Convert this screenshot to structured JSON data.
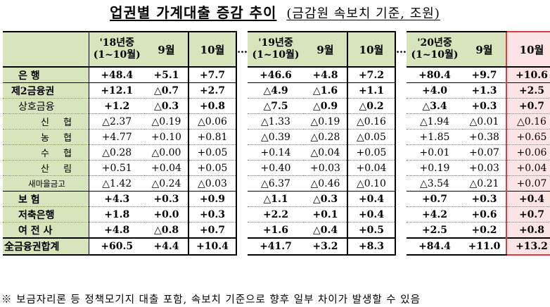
{
  "title": {
    "main": "업권별 가계대출 증감 추이",
    "sub": "(금감원 속보치 기준, 조원)"
  },
  "columns": {
    "y18_main_line1": "'18년중",
    "y18_main_line2": "(1~10월)",
    "y18_sep": "9월",
    "y18_oct": "10월",
    "dots": "…",
    "y19_main_line1": "'19년중",
    "y19_main_line2": "(1~10월)",
    "y19_sep": "9월",
    "y19_oct": "10월",
    "y20_main_line1": "'20년중",
    "y20_main_line2": "(1~10월)",
    "y20_sep": "9월",
    "y20_oct": "10월"
  },
  "rows": [
    {
      "label": "은      행",
      "values": [
        "+48.4",
        "+5.1",
        "+7.7",
        "+46.6",
        "+4.8",
        "+7.2",
        "+80.4",
        "+9.7",
        "+10.6"
      ]
    },
    {
      "label": "제2금융권",
      "values": [
        "+12.1",
        "△0.7",
        "+2.7",
        "△4.9",
        "△1.6",
        "+1.1",
        "+4.0",
        "+1.3",
        "+2.5"
      ]
    },
    {
      "label": "상호금융",
      "values": [
        "+1.2",
        "△0.3",
        "+0.8",
        "△7.5",
        "△0.9",
        "△0.2",
        "△3.4",
        "+0.3",
        "+0.7"
      ]
    },
    {
      "label": "신 협",
      "values": [
        "△2.37",
        "△0.19",
        "△0.06",
        "△1.33",
        "△0.19",
        "△0.16",
        "△1.94",
        "△0.01",
        "△0.16"
      ]
    },
    {
      "label": "농 협",
      "values": [
        "+4.77",
        "+0.10",
        "+0.81",
        "△0.39",
        "△0.28",
        "△0.05",
        "+1.85",
        "+0.38",
        "+0.65"
      ]
    },
    {
      "label": "수 협",
      "values": [
        "△0.28",
        "△0.00",
        "+0.05",
        "+0.14",
        "△0.04",
        "+0.05",
        "+0.01",
        "+0.07",
        "+0.06"
      ]
    },
    {
      "label": "산 림",
      "values": [
        "+0.51",
        "+0.04",
        "+0.05",
        "+0.40",
        "+0.03",
        "+0.04",
        "+0.19",
        "+0.03",
        "+0.04"
      ]
    },
    {
      "label": "새마을금고",
      "values": [
        "△1.42",
        "△0.24",
        "△0.03",
        "△6.37",
        "△0.46",
        "△0.10",
        "△3.54",
        "△0.21",
        "+0.07"
      ]
    },
    {
      "label": "보      험",
      "values": [
        "+4.3",
        "+0.3",
        "+0.9",
        "△1.1",
        "△0.3",
        "+0.4",
        "+0.7",
        "+0.3",
        "+0.4"
      ]
    },
    {
      "label": "저축은행",
      "values": [
        "+1.8",
        "+0.0",
        "+0.3",
        "+2.2",
        "+0.1",
        "+0.4",
        "+4.2",
        "+0.6",
        "+0.7"
      ]
    },
    {
      "label": "여 전 사",
      "values": [
        "+4.8",
        "△0.8",
        "+0.7",
        "+1.6",
        "△0.4",
        "+0.5",
        "+2.5",
        "+0.2",
        "+0.8"
      ]
    },
    {
      "label": "全금융권합계",
      "values": [
        "+60.5",
        "+4.4",
        "+10.4",
        "+41.7",
        "+3.2",
        "+8.3",
        "+84.4",
        "+11.0",
        "+13.2"
      ]
    }
  ],
  "note": "※ 보금자리론 등 정책모기지 대출 포함, 속보치 기준으로 향후 일부 차이가 발생할 수 있음"
}
